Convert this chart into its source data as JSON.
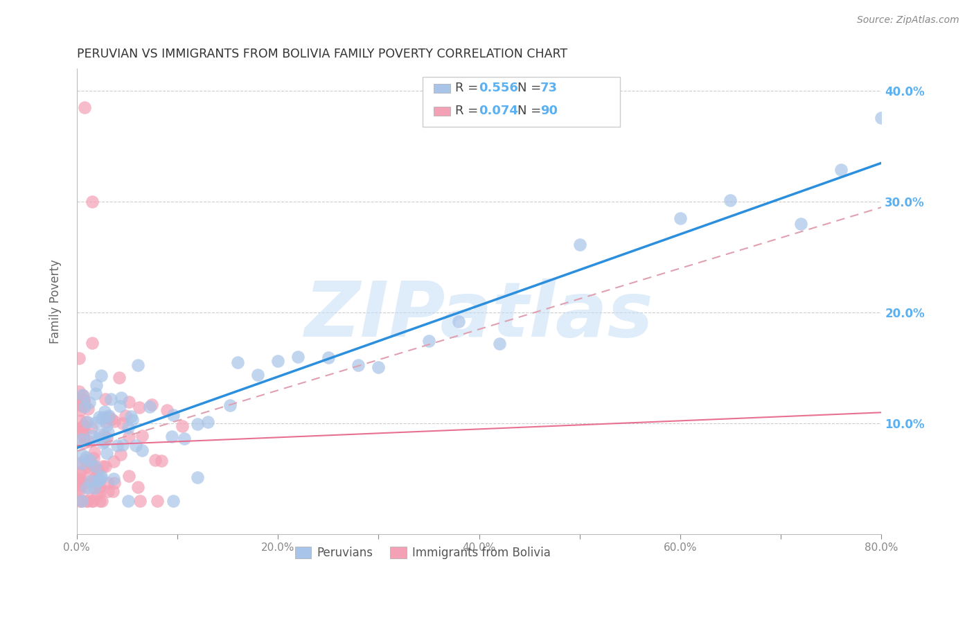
{
  "title": "PERUVIAN VS IMMIGRANTS FROM BOLIVIA FAMILY POVERTY CORRELATION CHART",
  "source": "Source: ZipAtlas.com",
  "ylabel": "Family Poverty",
  "watermark": "ZIPatlas",
  "xlim": [
    0,
    0.8
  ],
  "ylim": [
    0,
    0.42
  ],
  "blue_color": "#a8c4e8",
  "pink_color": "#f4a0b5",
  "blue_line_color": "#2b8fde",
  "pink_line_color": "#e87090",
  "dashed_line_color": "#e0a0b0",
  "legend_blue_r": "0.556",
  "legend_blue_n": "73",
  "legend_pink_r": "0.074",
  "legend_pink_n": "90",
  "blue_r": 0.556,
  "blue_n": 73,
  "pink_r": 0.074,
  "pink_n": 90,
  "blue_line_x0": 0.0,
  "blue_line_y0": 0.078,
  "blue_line_x1": 0.8,
  "blue_line_y1": 0.335,
  "pink_line_x0": 0.0,
  "pink_line_y0": 0.08,
  "pink_line_x1": 0.8,
  "pink_line_y1": 0.11,
  "dash_line_x0": 0.0,
  "dash_line_y0": 0.075,
  "dash_line_x1": 0.8,
  "dash_line_y1": 0.295,
  "background_color": "#ffffff",
  "grid_color": "#cccccc",
  "title_color": "#333333",
  "axis_label_color": "#666666",
  "tick_color": "#888888",
  "right_ytick_color": "#5ab0f0"
}
